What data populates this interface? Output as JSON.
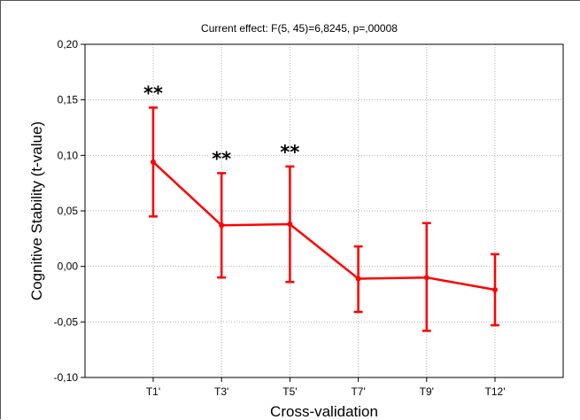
{
  "chart_data": {
    "type": "line",
    "title": "Current effect: F(5, 45)=6,8245, p=,00008",
    "xlabel": "Cross-validation",
    "ylabel": "Cognitive Stability (t-value)",
    "categories": [
      "T1'",
      "T3'",
      "T5'",
      "T7'",
      "T9'",
      "T12'"
    ],
    "series": [
      {
        "values": [
          0.094,
          0.037,
          0.038,
          -0.011,
          -0.01,
          -0.021
        ],
        "upper": [
          0.143,
          0.084,
          0.09,
          0.018,
          0.039,
          0.011
        ],
        "lower": [
          0.045,
          -0.01,
          -0.014,
          -0.041,
          -0.058,
          -0.053
        ],
        "color": "#ff0000"
      }
    ],
    "ylim": [
      -0.1,
      0.2
    ],
    "yticks": [
      0.2,
      0.15,
      0.1,
      0.05,
      0.0,
      -0.05,
      -0.1
    ],
    "ytick_labels": [
      "0,20",
      "0,15",
      "0,10",
      "0,05",
      "0,00",
      "-0,05",
      "-0,10"
    ],
    "annotations": [
      {
        "category": "T1'",
        "text": "**"
      },
      {
        "category": "T3'",
        "text": "**"
      },
      {
        "category": "T5'",
        "text": "**"
      }
    ],
    "grid": true,
    "grid_style": "dotted",
    "legend": "none"
  }
}
